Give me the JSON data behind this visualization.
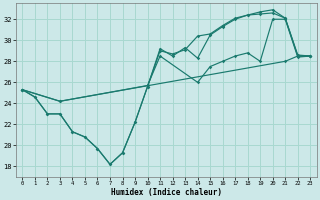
{
  "xlabel": "Humidex (Indice chaleur)",
  "bg_color": "#cce8e8",
  "line_color": "#1a7a6e",
  "grid_color": "#a8d8d0",
  "xlim": [
    -0.5,
    23.5
  ],
  "ylim": [
    17.0,
    33.5
  ],
  "xticks": [
    0,
    1,
    2,
    3,
    4,
    5,
    6,
    7,
    8,
    9,
    10,
    11,
    12,
    13,
    14,
    15,
    16,
    17,
    18,
    19,
    20,
    21,
    22,
    23
  ],
  "yticks": [
    18,
    20,
    22,
    24,
    26,
    28,
    30,
    32
  ],
  "lines": [
    {
      "x": [
        0,
        1,
        2,
        3,
        4,
        5,
        6,
        7,
        8,
        9,
        10,
        11,
        12,
        13,
        14,
        15,
        16,
        17,
        18,
        19,
        20,
        21,
        22,
        23
      ],
      "y": [
        25.3,
        24.6,
        23.0,
        23.0,
        21.3,
        20.8,
        19.7,
        18.2,
        19.3,
        22.2,
        25.6,
        29.2,
        28.5,
        29.3,
        28.3,
        30.5,
        31.3,
        32.0,
        32.4,
        32.7,
        32.9,
        32.1,
        28.6,
        28.5
      ]
    },
    {
      "x": [
        0,
        1,
        2,
        3,
        4,
        5,
        6,
        7,
        8,
        9,
        10,
        11,
        12,
        13,
        14,
        15,
        16,
        17,
        18,
        19,
        20,
        21,
        22,
        23
      ],
      "y": [
        25.3,
        24.6,
        23.0,
        23.0,
        21.3,
        20.8,
        19.7,
        18.2,
        19.3,
        22.2,
        25.6,
        29.0,
        28.7,
        29.1,
        30.4,
        30.6,
        31.4,
        32.1,
        32.4,
        32.5,
        32.6,
        32.1,
        28.5,
        28.5
      ]
    },
    {
      "x": [
        0,
        3,
        21,
        22,
        23
      ],
      "y": [
        25.3,
        24.2,
        28.0,
        28.5,
        28.5
      ]
    },
    {
      "x": [
        0,
        3,
        10,
        11,
        14,
        15,
        16,
        17,
        18,
        19,
        20,
        21,
        22,
        23
      ],
      "y": [
        25.3,
        24.2,
        25.7,
        28.5,
        26.0,
        27.5,
        28.0,
        28.5,
        28.8,
        28.0,
        32.0,
        32.0,
        28.4,
        28.5
      ]
    }
  ]
}
